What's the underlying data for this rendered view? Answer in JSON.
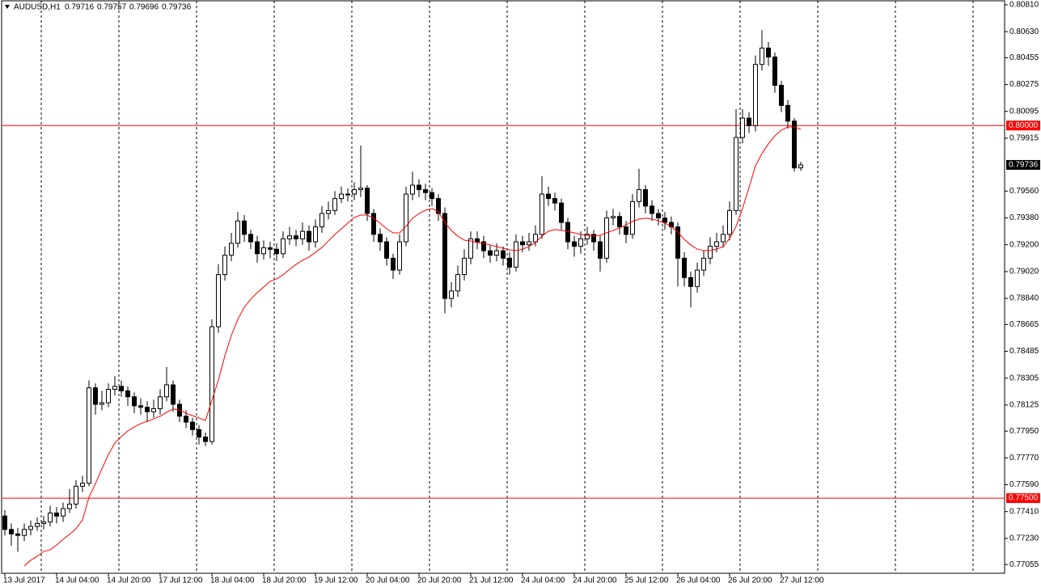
{
  "chart_data": {
    "type": "candlestick",
    "header": {
      "symbol": "AUDUSD,H1",
      "open": "0.79716",
      "high": "0.79757",
      "low": "0.79696",
      "close": "0.79736"
    },
    "ylim": [
      0.76996,
      0.80837
    ],
    "yticks": [
      {
        "value": 0.8081,
        "label": "0.80810"
      },
      {
        "value": 0.8063,
        "label": "0.80630"
      },
      0.80455,
      0.80275,
      0.80095,
      0.79915,
      {
        "value": 0.7956,
        "label": "0.79560"
      },
      {
        "value": 0.7938,
        "label": "0.79380"
      },
      {
        "value": 0.792,
        "label": "0.79200"
      },
      {
        "value": 0.7902,
        "label": "0.79020"
      },
      {
        "value": 0.7884,
        "label": "0.78840"
      },
      0.78665,
      0.78485,
      0.78305,
      0.78125,
      {
        "value": 0.7795,
        "label": "0.77950"
      },
      {
        "value": 0.7777,
        "label": "0.77770"
      },
      {
        "value": 0.7759,
        "label": "0.77590"
      },
      {
        "value": 0.7741,
        "label": "0.77410"
      },
      {
        "value": 0.7723,
        "label": "0.77230"
      },
      0.77055
    ],
    "levels": [
      {
        "value": 0.8,
        "label": "0.80000",
        "color": "#ff0000"
      },
      {
        "value": 0.775,
        "label": "0.77500",
        "color": "#ff0000"
      }
    ],
    "last": {
      "value": 0.79736,
      "label": "0.79736"
    },
    "categories": [
      "13 Jul 2017",
      null,
      null,
      null,
      null,
      null,
      null,
      null,
      "14 Jul 04:00",
      null,
      null,
      null,
      null,
      null,
      null,
      null,
      "14 Jul 20:00",
      null,
      null,
      null,
      null,
      null,
      null,
      null,
      "17 Jul 12:00",
      null,
      null,
      null,
      null,
      null,
      null,
      null,
      "18 Jul 04:00",
      null,
      null,
      null,
      null,
      null,
      null,
      null,
      "18 Jul 20:00",
      null,
      null,
      null,
      null,
      null,
      null,
      null,
      "19 Jul 12:00",
      null,
      null,
      null,
      null,
      null,
      null,
      null,
      "20 Jul 04:00",
      null,
      null,
      null,
      null,
      null,
      null,
      null,
      "20 Jul 20:00",
      null,
      null,
      null,
      null,
      null,
      null,
      null,
      "21 Jul 12:00",
      null,
      null,
      null,
      null,
      null,
      null,
      null,
      "24 Jul 04:00",
      null,
      null,
      null,
      null,
      null,
      null,
      null,
      "24 Jul 20:00",
      null,
      null,
      null,
      null,
      null,
      null,
      null,
      "25 Jul 12:00",
      null,
      null,
      null,
      null,
      null,
      null,
      null,
      "26 Jul 04:00",
      null,
      null,
      null,
      null,
      null,
      null,
      null,
      "26 Jul 20:00",
      null,
      null,
      null,
      null,
      null,
      null,
      null,
      "27 Jul 12:00",
      null,
      null,
      null
    ],
    "ohlc": [
      [
        0.7738,
        0.7742,
        0.7725,
        0.7729
      ],
      [
        0.7729,
        0.7733,
        0.7718,
        0.7726
      ],
      [
        0.7726,
        0.773,
        0.7714,
        0.7725
      ],
      [
        0.7725,
        0.7733,
        0.7721,
        0.7729
      ],
      [
        0.7729,
        0.7735,
        0.7725,
        0.7731
      ],
      [
        0.7731,
        0.7737,
        0.7728,
        0.7733
      ],
      [
        0.7733,
        0.7738,
        0.7729,
        0.7734
      ],
      [
        0.7734,
        0.7745,
        0.7731,
        0.774
      ],
      [
        0.774,
        0.7744,
        0.7733,
        0.7738
      ],
      [
        0.7738,
        0.7747,
        0.7734,
        0.7743
      ],
      [
        0.7743,
        0.7756,
        0.774,
        0.7746
      ],
      [
        0.7746,
        0.7762,
        0.7743,
        0.7758
      ],
      [
        0.7758,
        0.7765,
        0.7754,
        0.776
      ],
      [
        0.776,
        0.7829,
        0.7758,
        0.7824
      ],
      [
        0.7824,
        0.7827,
        0.7806,
        0.7813
      ],
      [
        0.7813,
        0.7822,
        0.7809,
        0.7814
      ],
      [
        0.7814,
        0.7827,
        0.7811,
        0.7823
      ],
      [
        0.7823,
        0.7832,
        0.7819,
        0.7825
      ],
      [
        0.7825,
        0.7829,
        0.7818,
        0.7822
      ],
      [
        0.7822,
        0.7825,
        0.7812,
        0.7818
      ],
      [
        0.7818,
        0.7821,
        0.7807,
        0.7812
      ],
      [
        0.7812,
        0.7817,
        0.7806,
        0.7811
      ],
      [
        0.7811,
        0.7815,
        0.7801,
        0.7808
      ],
      [
        0.7808,
        0.7816,
        0.7804,
        0.781
      ],
      [
        0.781,
        0.7823,
        0.7806,
        0.7818
      ],
      [
        0.7818,
        0.7838,
        0.7815,
        0.7826
      ],
      [
        0.7826,
        0.7829,
        0.7808,
        0.7813
      ],
      [
        0.7813,
        0.7816,
        0.7801,
        0.7805
      ],
      [
        0.7805,
        0.7809,
        0.7797,
        0.7801
      ],
      [
        0.7801,
        0.7804,
        0.7792,
        0.7796
      ],
      [
        0.7796,
        0.7799,
        0.7786,
        0.7791
      ],
      [
        0.7791,
        0.7794,
        0.7785,
        0.7788
      ],
      [
        0.7788,
        0.787,
        0.7786,
        0.7865
      ],
      [
        0.7865,
        0.7907,
        0.7861,
        0.79
      ],
      [
        0.79,
        0.7919,
        0.7896,
        0.7913
      ],
      [
        0.7913,
        0.7928,
        0.7909,
        0.7921
      ],
      [
        0.7921,
        0.7942,
        0.7918,
        0.7936
      ],
      [
        0.7936,
        0.794,
        0.7922,
        0.7927
      ],
      [
        0.7927,
        0.793,
        0.7917,
        0.7922
      ],
      [
        0.7922,
        0.7926,
        0.7908,
        0.7914
      ],
      [
        0.7914,
        0.7923,
        0.791,
        0.7918
      ],
      [
        0.7918,
        0.7922,
        0.7911,
        0.7917
      ],
      [
        0.7917,
        0.7921,
        0.7909,
        0.7914
      ],
      [
        0.7914,
        0.7929,
        0.7911,
        0.7924
      ],
      [
        0.7924,
        0.7932,
        0.792,
        0.7926
      ],
      [
        0.7926,
        0.793,
        0.7919,
        0.7924
      ],
      [
        0.7924,
        0.7935,
        0.792,
        0.7929
      ],
      [
        0.7929,
        0.7933,
        0.7916,
        0.7922
      ],
      [
        0.7922,
        0.7937,
        0.7918,
        0.7932
      ],
      [
        0.7932,
        0.7946,
        0.7928,
        0.7941
      ],
      [
        0.7941,
        0.7949,
        0.7937,
        0.7943
      ],
      [
        0.7943,
        0.7956,
        0.794,
        0.7951
      ],
      [
        0.7951,
        0.7959,
        0.7948,
        0.7954
      ],
      [
        0.7954,
        0.7958,
        0.7949,
        0.7954
      ],
      [
        0.7954,
        0.7962,
        0.795,
        0.7957
      ],
      [
        0.7957,
        0.79866,
        0.7952,
        0.7958
      ],
      [
        0.7958,
        0.796,
        0.7936,
        0.7941
      ],
      [
        0.7941,
        0.7944,
        0.7922,
        0.7927
      ],
      [
        0.7927,
        0.7931,
        0.7916,
        0.7922
      ],
      [
        0.7922,
        0.7925,
        0.7906,
        0.7911
      ],
      [
        0.7911,
        0.7914,
        0.7897,
        0.7903
      ],
      [
        0.7903,
        0.7927,
        0.79,
        0.7922
      ],
      [
        0.7922,
        0.7959,
        0.7919,
        0.7954
      ],
      [
        0.7954,
        0.7969,
        0.795,
        0.796
      ],
      [
        0.796,
        0.7964,
        0.7952,
        0.7957
      ],
      [
        0.7957,
        0.7961,
        0.795,
        0.7955
      ],
      [
        0.7955,
        0.7958,
        0.7946,
        0.7951
      ],
      [
        0.7951,
        0.7954,
        0.7936,
        0.7941
      ],
      [
        0.7941,
        0.7945,
        0.7874,
        0.7884
      ],
      [
        0.7884,
        0.7895,
        0.7878,
        0.7889
      ],
      [
        0.7889,
        0.7906,
        0.7885,
        0.79
      ],
      [
        0.79,
        0.7917,
        0.7896,
        0.7911
      ],
      [
        0.7911,
        0.7929,
        0.7907,
        0.7924
      ],
      [
        0.7924,
        0.7929,
        0.7917,
        0.7922
      ],
      [
        0.7922,
        0.7926,
        0.7911,
        0.7916
      ],
      [
        0.7916,
        0.792,
        0.7908,
        0.7913
      ],
      [
        0.7913,
        0.7921,
        0.7909,
        0.7916
      ],
      [
        0.7916,
        0.7919,
        0.7906,
        0.7911
      ],
      [
        0.7911,
        0.7915,
        0.79,
        0.7905
      ],
      [
        0.7905,
        0.7927,
        0.7902,
        0.7922
      ],
      [
        0.7922,
        0.7926,
        0.7915,
        0.792
      ],
      [
        0.792,
        0.7928,
        0.7916,
        0.7922
      ],
      [
        0.7922,
        0.7933,
        0.7919,
        0.7927
      ],
      [
        0.7927,
        0.7966,
        0.7924,
        0.7954
      ],
      [
        0.7954,
        0.7959,
        0.7946,
        0.7951
      ],
      [
        0.7951,
        0.7955,
        0.7943,
        0.7948
      ],
      [
        0.7948,
        0.7951,
        0.793,
        0.7935
      ],
      [
        0.7935,
        0.7938,
        0.7917,
        0.7922
      ],
      [
        0.7922,
        0.7926,
        0.7912,
        0.7919
      ],
      [
        0.7919,
        0.7929,
        0.7914,
        0.7924
      ],
      [
        0.7924,
        0.7932,
        0.792,
        0.7927
      ],
      [
        0.7927,
        0.793,
        0.7916,
        0.7922
      ],
      [
        0.7922,
        0.7926,
        0.7902,
        0.7911
      ],
      [
        0.7911,
        0.7943,
        0.7908,
        0.7938
      ],
      [
        0.7938,
        0.7944,
        0.7933,
        0.7939
      ],
      [
        0.7939,
        0.7942,
        0.7927,
        0.7932
      ],
      [
        0.7932,
        0.7936,
        0.7921,
        0.7927
      ],
      [
        0.7927,
        0.7954,
        0.7924,
        0.7949
      ],
      [
        0.7949,
        0.7971,
        0.7945,
        0.7957
      ],
      [
        0.7957,
        0.796,
        0.7941,
        0.7946
      ],
      [
        0.7946,
        0.795,
        0.7936,
        0.7941
      ],
      [
        0.7941,
        0.7944,
        0.7933,
        0.7938
      ],
      [
        0.7938,
        0.7942,
        0.793,
        0.7935
      ],
      [
        0.7935,
        0.7939,
        0.7927,
        0.7932
      ],
      [
        0.7932,
        0.7935,
        0.7892,
        0.7911
      ],
      [
        0.7911,
        0.7915,
        0.7892,
        0.7898
      ],
      [
        0.7898,
        0.7902,
        0.7878,
        0.7892
      ],
      [
        0.7892,
        0.7908,
        0.7888,
        0.7903
      ],
      [
        0.7903,
        0.7916,
        0.7899,
        0.7911
      ],
      [
        0.7911,
        0.7925,
        0.7907,
        0.7919
      ],
      [
        0.7919,
        0.7928,
        0.7915,
        0.7922
      ],
      [
        0.7922,
        0.7933,
        0.7918,
        0.7927
      ],
      [
        0.7927,
        0.7949,
        0.7923,
        0.7943
      ],
      [
        0.7943,
        0.8011,
        0.794,
        0.7992
      ],
      [
        0.7992,
        0.8011,
        0.7988,
        0.8005
      ],
      [
        0.8005,
        0.8009,
        0.7995,
        0.8
      ],
      [
        0.8,
        0.8047,
        0.7996,
        0.8041
      ],
      [
        0.8041,
        0.8064,
        0.8037,
        0.8052
      ],
      [
        0.8052,
        0.8056,
        0.804,
        0.8046
      ],
      [
        0.8046,
        0.8049,
        0.8022,
        0.8027
      ],
      [
        0.8027,
        0.803,
        0.8009,
        0.80135
      ],
      [
        0.80135,
        0.8017,
        0.7998,
        0.8003
      ],
      [
        0.8003,
        0.8005,
        0.7969,
        0.79716
      ],
      [
        0.79716,
        0.79757,
        0.79696,
        0.79736
      ]
    ],
    "ma": {
      "color": "#ff0000",
      "values": [
        null,
        null,
        null,
        0.77045,
        0.77083,
        0.7711,
        0.77143,
        0.77153,
        0.77186,
        0.77224,
        0.77257,
        0.77295,
        0.77354,
        0.77506,
        0.77598,
        0.77696,
        0.77793,
        0.77869,
        0.77913,
        0.77951,
        0.77978,
        0.78,
        0.78016,
        0.78032,
        0.78049,
        0.78076,
        0.78098,
        0.78092,
        0.7807,
        0.78054,
        0.78038,
        0.78021,
        0.78157,
        0.78292,
        0.78455,
        0.78591,
        0.787,
        0.78781,
        0.78835,
        0.78879,
        0.78917,
        0.78955,
        0.78971,
        0.78998,
        0.79036,
        0.79068,
        0.79096,
        0.79117,
        0.7915,
        0.79182,
        0.79226,
        0.79269,
        0.79307,
        0.79345,
        0.79383,
        0.79399,
        0.79399,
        0.79378,
        0.79345,
        0.79307,
        0.7928,
        0.7928,
        0.79323,
        0.79378,
        0.7941,
        0.79432,
        0.79443,
        0.79421,
        0.79351,
        0.79296,
        0.79258,
        0.79231,
        0.79226,
        0.79215,
        0.79209,
        0.79199,
        0.79188,
        0.79177,
        0.79166,
        0.79161,
        0.79171,
        0.79188,
        0.79215,
        0.79258,
        0.79291,
        0.79302,
        0.79296,
        0.79291,
        0.7928,
        0.79269,
        0.79264,
        0.79258,
        0.79264,
        0.7928,
        0.79296,
        0.79313,
        0.79334,
        0.79356,
        0.79372,
        0.79378,
        0.79372,
        0.79361,
        0.79345,
        0.79323,
        0.79285,
        0.79236,
        0.79199,
        0.79171,
        0.79161,
        0.79161,
        0.79171,
        0.79188,
        0.79242,
        0.79323,
        0.79443,
        0.79584,
        0.7973,
        0.79812,
        0.79877,
        0.79931,
        0.79969,
        0.79991,
        0.79991,
        0.79975
      ]
    }
  }
}
